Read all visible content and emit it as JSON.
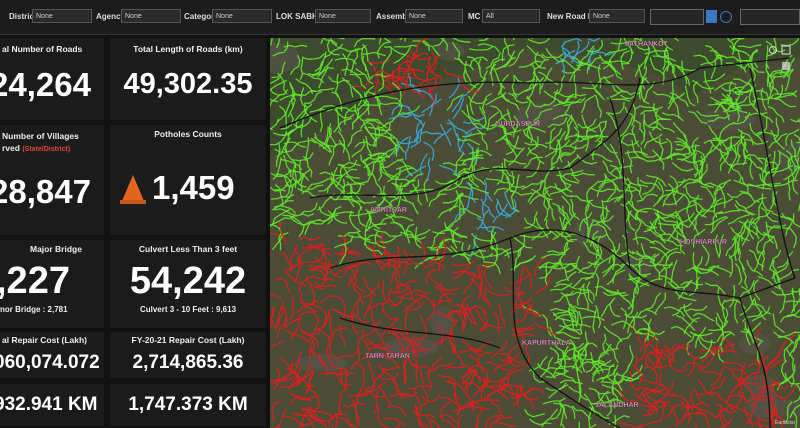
{
  "filters": [
    {
      "label": "District",
      "value": "None"
    },
    {
      "label": "Agency",
      "value": "None"
    },
    {
      "label": "Category",
      "value": "None"
    },
    {
      "label": "LOK SABHA",
      "value": "None"
    },
    {
      "label": "Assembly",
      "value": "None"
    },
    {
      "label": "MC",
      "value": "All"
    },
    {
      "label": "New Road ID",
      "value": "None"
    }
  ],
  "cards": {
    "roads": {
      "title": "al Number of Roads",
      "value": "24,264"
    },
    "length": {
      "title": "Total Length of Roads (km)",
      "value": "49,302.35"
    },
    "villages": {
      "title": "Number of Villages",
      "title2": "rved",
      "note": "(State/District)",
      "value": "28,847"
    },
    "potholes": {
      "title": "Potholes Counts",
      "value": "1,459"
    },
    "major_bridge": {
      "title": "Major Bridge",
      "value": ",227",
      "footer": "nor Bridge : 2,781"
    },
    "culvert": {
      "title": "Culvert Less Than 3 feet",
      "value": "54,242",
      "footer": "Culvert 3 - 10 Feet : 9,613"
    },
    "repair_total": {
      "title": "al Repair Cost (Lakh)",
      "value": "060,074.072",
      "km": "932.941 KM"
    },
    "repair_fy": {
      "title": "FY-20-21 Repair Cost (Lakh)",
      "value": "2,714,865.36",
      "km": "1,747.373 KM"
    }
  },
  "map": {
    "labels": [
      "PATHANKOT",
      "GURDASPUR",
      "AMRITSAR",
      "HOSHIARPUR",
      "KAPURTHALA",
      "TARN TARAN",
      "JALANDHAR"
    ],
    "attribution": "Earthstar"
  }
}
